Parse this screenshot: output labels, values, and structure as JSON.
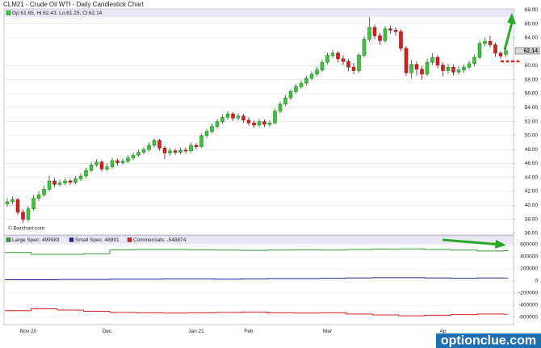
{
  "chart_data": [
    {
      "type": "candlestick",
      "title": "CLM21 - Crude Oil WTI - Daily Candlestick Chart",
      "info": "Op:61.65, Hi:62.43, Lo:61.25, Cl:62.14",
      "credit": "© Barchart.com",
      "up_color": "#3ec43e",
      "down_color": "#d42020",
      "open": [
        40.2,
        40.5,
        40.8,
        39,
        38,
        39.5,
        41,
        41.5,
        42.3,
        43.5,
        43,
        43.2,
        43.5,
        43.3,
        43.8,
        44.2,
        45,
        45.8,
        46.2,
        45.2,
        45.5,
        46.4,
        46.1,
        46.3,
        46.8,
        47.2,
        47.6,
        48,
        48.6,
        49.3,
        48.2,
        47.5,
        47.8,
        47.6,
        47.9,
        47.8,
        48.6,
        48.4,
        50,
        50.6,
        51.3,
        52,
        52.6,
        53.1,
        52.5,
        52.8,
        52.2,
        51.8,
        51.5,
        52,
        51.6,
        51.8,
        53.5,
        54.5,
        55.4,
        56.3,
        57,
        57.5,
        58.2,
        58.8,
        59.4,
        60.5,
        61.5,
        61.8,
        61,
        60.6,
        59.8,
        59.3,
        61.5,
        63.8,
        65.5,
        64.3,
        63.6,
        65.3,
        65.1,
        64.9,
        62.5,
        59,
        60.2,
        59.5,
        58.8,
        60.5,
        61.2,
        60.1,
        59.3,
        59.8,
        59.1,
        59.4,
        59.8,
        60.3,
        61.2,
        63.2,
        63.5,
        63,
        61.8,
        61.65
      ],
      "high": [
        41,
        41.3,
        41.1,
        39.4,
        39.9,
        41.5,
        42,
        42.8,
        44.3,
        43.9,
        43.7,
        43.9,
        43.8,
        44.2,
        44.6,
        45.4,
        46.2,
        46.6,
        46.5,
        46,
        46.8,
        46.7,
        46.7,
        47.2,
        47.6,
        48,
        48.4,
        49,
        49.6,
        49.5,
        48.5,
        48.2,
        48.1,
        48.3,
        48.3,
        49,
        48.9,
        50.3,
        51,
        51.7,
        52.4,
        53,
        53.5,
        53.4,
        53.2,
        53.1,
        52.6,
        52.2,
        52.4,
        52.3,
        52.2,
        53.8,
        54.9,
        55.8,
        56.7,
        57.4,
        57.9,
        58.6,
        59.2,
        59.8,
        60.9,
        61.9,
        62.3,
        62.1,
        61.5,
        61,
        60.4,
        61.8,
        64.2,
        67,
        65.9,
        64.7,
        65.7,
        65.8,
        65.5,
        65.2,
        62.8,
        60.8,
        60.6,
        60,
        61,
        61.8,
        61.5,
        60.5,
        60.3,
        60.2,
        59.9,
        60.2,
        60.7,
        61.6,
        63.6,
        64,
        64.3,
        63.3,
        62.1,
        62.43
      ],
      "low": [
        39.8,
        40.1,
        38.6,
        37.5,
        37.6,
        39.2,
        40.6,
        41.2,
        42,
        42.6,
        42.7,
        42.9,
        42.9,
        43,
        43.5,
        43.9,
        44.7,
        45.5,
        44.8,
        44.9,
        45.2,
        45.7,
        45.8,
        46,
        46.5,
        46.9,
        47.3,
        47.7,
        48.3,
        47.8,
        46.6,
        47.1,
        47.2,
        47.3,
        47.4,
        47.5,
        48,
        48.2,
        49.6,
        50.3,
        51,
        51.7,
        52.3,
        52.1,
        52.2,
        51.8,
        51.4,
        51.1,
        51.2,
        51.2,
        51.2,
        51.6,
        53.2,
        54.2,
        55.1,
        56,
        56.7,
        57.2,
        57.9,
        58.5,
        59.1,
        60.2,
        61.1,
        60.5,
        60.1,
        59.2,
        58.8,
        59,
        61.2,
        63.5,
        63.8,
        63,
        63.3,
        64.6,
        64.3,
        62.1,
        58.5,
        58.2,
        58.6,
        58,
        58.5,
        60.1,
        59.6,
        58.5,
        58.9,
        58.6,
        58.7,
        59,
        59.4,
        59.9,
        60.9,
        62.8,
        62.6,
        61.3,
        61,
        61.25
      ],
      "close": [
        40.5,
        40.8,
        39,
        38,
        39.5,
        41,
        41.5,
        42.3,
        43.5,
        43,
        43.2,
        43.5,
        43.3,
        43.8,
        44.2,
        45,
        45.8,
        46.2,
        45.2,
        45.5,
        46.4,
        46.1,
        46.3,
        46.8,
        47.2,
        47.6,
        48,
        48.6,
        49.3,
        48.2,
        47.5,
        47.8,
        47.6,
        47.9,
        47.8,
        48.6,
        48.4,
        50,
        50.6,
        51.3,
        52,
        52.6,
        53.1,
        52.5,
        52.8,
        52.2,
        51.8,
        51.5,
        52,
        51.6,
        51.8,
        53.5,
        54.5,
        55.4,
        56.3,
        57,
        57.5,
        58.2,
        58.8,
        59.4,
        60.5,
        61.5,
        61.8,
        61,
        60.6,
        59.8,
        59.3,
        61.5,
        63.8,
        65.5,
        64.3,
        63.6,
        65.3,
        65.1,
        64.9,
        62.5,
        59,
        60.2,
        59.5,
        58.8,
        60.5,
        61.2,
        60.1,
        59.3,
        59.8,
        59.1,
        59.4,
        59.8,
        60.3,
        61.2,
        63.2,
        63.5,
        63,
        61.8,
        61.4,
        62.14
      ],
      "ylim": [
        35.75,
        68.5
      ],
      "yticks": [
        {
          "value": 68,
          "label": "68.00"
        },
        {
          "value": 66,
          "label": "66.00"
        },
        {
          "value": 64,
          "label": "64.00"
        },
        {
          "value": 60,
          "label": "60.00"
        },
        {
          "value": 58,
          "label": "58.00"
        },
        {
          "value": 56,
          "label": "56.00"
        },
        {
          "value": 54,
          "label": "54.00"
        },
        {
          "value": 52,
          "label": "52.00"
        },
        {
          "value": 50,
          "label": "50.00"
        },
        {
          "value": 48,
          "label": "48.00"
        },
        {
          "value": 46,
          "label": "46.00"
        },
        {
          "value": 44,
          "label": "44.00"
        },
        {
          "value": 42,
          "label": "42.00"
        },
        {
          "value": 40,
          "label": "40.00"
        },
        {
          "value": 38,
          "label": "38.00"
        },
        {
          "value": 36,
          "label": "36.00"
        }
      ],
      "grid": true
    },
    {
      "type": "line",
      "categories": [
        null,
        null,
        null,
        null,
        "Nov 20",
        null,
        null,
        null,
        null,
        null,
        null,
        null,
        null,
        null,
        null,
        null,
        null,
        null,
        null,
        "Dec",
        null,
        null,
        null,
        null,
        null,
        null,
        null,
        null,
        null,
        null,
        null,
        null,
        null,
        null,
        null,
        null,
        "Jan 21",
        null,
        null,
        null,
        null,
        null,
        null,
        null,
        null,
        null,
        "Feb",
        null,
        null,
        null,
        null,
        null,
        null,
        null,
        null,
        null,
        null,
        null,
        null,
        null,
        null,
        "Mar",
        null,
        null,
        null,
        null,
        null,
        null,
        null,
        null,
        null,
        null,
        null,
        null,
        null,
        null,
        null,
        null,
        null,
        null,
        null,
        null,
        null,
        "Ap",
        null,
        null,
        null,
        null,
        null,
        null,
        null,
        null,
        null,
        null,
        null,
        null
      ],
      "series": [
        {
          "name": "Large Spec: 499983",
          "color": "#339933",
          "values": [
            470000,
            470000,
            470000,
            470000,
            470000,
            440000,
            440000,
            440000,
            440000,
            440000,
            440000,
            440000,
            440000,
            440000,
            440000,
            450000,
            450000,
            450000,
            450000,
            450000,
            515000,
            515000,
            515000,
            515000,
            515000,
            520000,
            520000,
            520000,
            520000,
            520000,
            520000,
            520000,
            520000,
            520000,
            520000,
            515000,
            515000,
            515000,
            515000,
            515000,
            510000,
            510000,
            510000,
            510000,
            510000,
            505000,
            505000,
            505000,
            505000,
            505000,
            510000,
            510000,
            510000,
            510000,
            510000,
            515000,
            515000,
            515000,
            515000,
            515000,
            510000,
            510000,
            510000,
            510000,
            510000,
            520000,
            520000,
            520000,
            520000,
            520000,
            525000,
            525000,
            525000,
            525000,
            525000,
            530000,
            530000,
            530000,
            530000,
            530000,
            520000,
            520000,
            520000,
            520000,
            520000,
            510000,
            510000,
            510000,
            510000,
            510000,
            495000,
            495000,
            495000,
            495000,
            495000,
            499983
          ]
        },
        {
          "name": "Small Spec: 48891",
          "color": "#1f1f8f",
          "values": [
            20000,
            20000,
            20000,
            20000,
            20000,
            20000,
            20000,
            20000,
            20000,
            20000,
            25000,
            25000,
            25000,
            25000,
            25000,
            25000,
            25000,
            25000,
            25000,
            25000,
            30000,
            30000,
            30000,
            30000,
            30000,
            30000,
            30000,
            30000,
            30000,
            30000,
            35000,
            35000,
            35000,
            35000,
            35000,
            35000,
            35000,
            35000,
            35000,
            35000,
            30000,
            30000,
            30000,
            30000,
            30000,
            35000,
            35000,
            35000,
            35000,
            35000,
            40000,
            40000,
            40000,
            40000,
            40000,
            40000,
            40000,
            40000,
            40000,
            40000,
            45000,
            45000,
            45000,
            45000,
            45000,
            50000,
            50000,
            50000,
            50000,
            50000,
            55000,
            55000,
            55000,
            55000,
            55000,
            55000,
            55000,
            55000,
            55000,
            55000,
            50000,
            50000,
            50000,
            50000,
            50000,
            45000,
            45000,
            45000,
            45000,
            45000,
            50000,
            50000,
            50000,
            50000,
            50000,
            48891
          ]
        },
        {
          "name": "Commercials: -548874",
          "color": "#d42020",
          "values": [
            -490000,
            -490000,
            -490000,
            -490000,
            -490000,
            -460000,
            -460000,
            -460000,
            -460000,
            -460000,
            -480000,
            -480000,
            -480000,
            -480000,
            -480000,
            -500000,
            -500000,
            -500000,
            -500000,
            -500000,
            -520000,
            -520000,
            -520000,
            -520000,
            -520000,
            -525000,
            -525000,
            -525000,
            -525000,
            -525000,
            -530000,
            -530000,
            -530000,
            -530000,
            -530000,
            -525000,
            -525000,
            -525000,
            -525000,
            -525000,
            -520000,
            -520000,
            -520000,
            -520000,
            -520000,
            -515000,
            -515000,
            -515000,
            -515000,
            -515000,
            -525000,
            -525000,
            -525000,
            -525000,
            -525000,
            -530000,
            -530000,
            -530000,
            -530000,
            -530000,
            -525000,
            -525000,
            -525000,
            -525000,
            -525000,
            -545000,
            -545000,
            -545000,
            -545000,
            -545000,
            -560000,
            -560000,
            -560000,
            -560000,
            -560000,
            -575000,
            -575000,
            -575000,
            -575000,
            -575000,
            -565000,
            -565000,
            -565000,
            -565000,
            -565000,
            -555000,
            -555000,
            -555000,
            -555000,
            -555000,
            -545000,
            -545000,
            -545000,
            -545000,
            -545000,
            -548874
          ]
        }
      ],
      "ylim": [
        -700000,
        700000
      ],
      "yticks": [
        600000,
        400000,
        200000,
        0,
        -200000,
        -400000,
        -600000
      ],
      "grid": true
    }
  ],
  "watermark": "optionclue.com"
}
